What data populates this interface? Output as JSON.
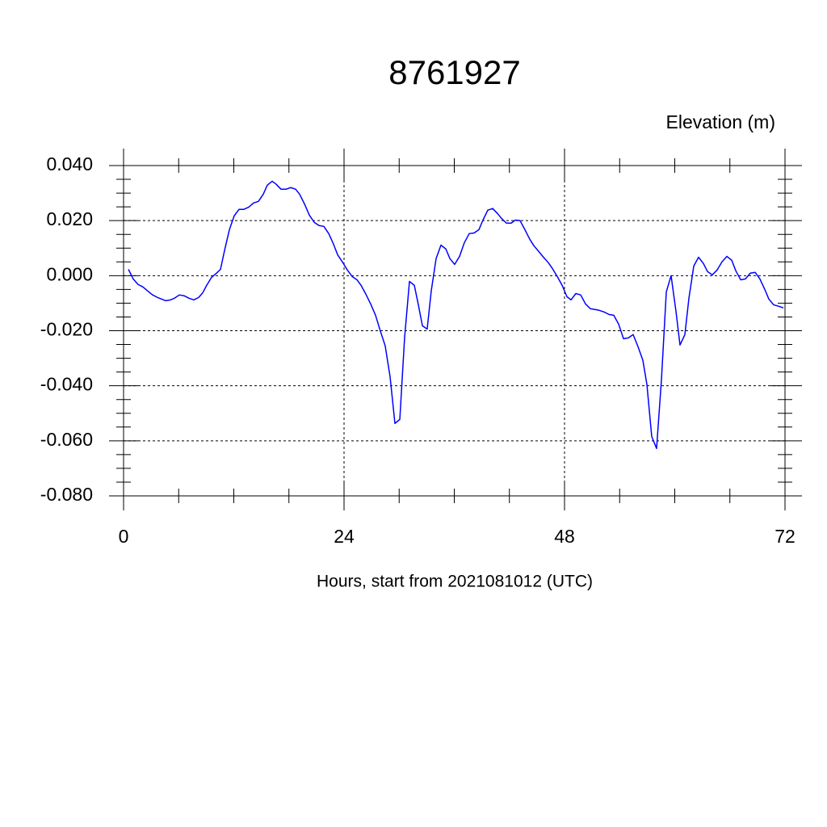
{
  "chart_data": {
    "type": "line",
    "title": "8761927",
    "ylabel": "Elevation (m)",
    "xlabel": "Hours, start from 2021081012 (UTC)",
    "x": [
      0.53,
      1.05,
      1.58,
      2.11,
      2.64,
      3.16,
      3.69,
      4.13,
      4.57,
      5.1,
      5.54,
      6.07,
      6.59,
      7.12,
      7.65,
      8.18,
      8.62,
      9.05,
      9.58,
      10.11,
      10.55,
      10.99,
      11.52,
      12.04,
      12.57,
      13.1,
      13.63,
      14.15,
      14.68,
      15.21,
      15.65,
      16.18,
      16.62,
      17.14,
      17.67,
      18.2,
      18.73,
      19.16,
      19.69,
      20.22,
      20.75,
      21.27,
      21.8,
      22.33,
      22.86,
      23.3,
      23.82,
      24.35,
      24.88,
      25.41,
      25.85,
      26.37,
      26.9,
      27.43,
      27.96,
      28.48,
      29.01,
      29.54,
      30.07,
      30.59,
      31.12,
      31.65,
      32.09,
      32.53,
      33.05,
      33.49,
      34.02,
      34.55,
      35.08,
      35.52,
      36.04,
      36.57,
      37.1,
      37.63,
      38.15,
      38.68,
      39.12,
      39.65,
      40.18,
      40.7,
      41.14,
      41.67,
      42.2,
      42.64,
      43.16,
      43.69,
      44.22,
      44.66,
      45.19,
      45.71,
      46.24,
      46.68,
      47.21,
      47.74,
      48.26,
      48.7,
      49.23,
      49.76,
      50.29,
      50.81,
      51.34,
      51.78,
      52.31,
      52.84,
      53.36,
      53.89,
      54.42,
      54.95,
      55.47,
      56.0,
      56.53,
      56.97,
      57.49,
      58.02,
      58.55,
      59.08,
      59.6,
      60.13,
      60.57,
      61.1,
      61.54,
      62.07,
      62.59,
      63.12,
      63.56,
      64.09,
      64.62,
      65.14,
      65.67,
      66.2,
      66.64,
      67.17,
      67.69,
      68.22,
      68.75,
      69.27,
      69.8,
      70.24,
      70.77,
      71.3,
      71.82
    ],
    "series": [
      {
        "name": "Elevation",
        "color": "#0000ff",
        "values": [
          0.0023,
          -0.0012,
          -0.0032,
          -0.0041,
          -0.0056,
          -0.007,
          -0.0079,
          -0.0085,
          -0.0091,
          -0.0088,
          -0.0082,
          -0.007,
          -0.0073,
          -0.0082,
          -0.0088,
          -0.0079,
          -0.0062,
          -0.0035,
          -0.0006,
          0.0009,
          0.0023,
          0.0091,
          0.0167,
          0.0217,
          0.0241,
          0.0241,
          0.0249,
          0.0264,
          0.027,
          0.0296,
          0.0329,
          0.0343,
          0.0332,
          0.0314,
          0.0314,
          0.032,
          0.0314,
          0.0296,
          0.0261,
          0.022,
          0.0194,
          0.0182,
          0.0179,
          0.0153,
          0.0114,
          0.0076,
          0.005,
          0.0021,
          -0.0003,
          -0.0015,
          -0.0035,
          -0.0067,
          -0.0103,
          -0.0144,
          -0.0202,
          -0.0255,
          -0.0367,
          -0.0537,
          -0.0522,
          -0.0226,
          -0.0021,
          -0.0035,
          -0.0106,
          -0.0182,
          -0.0194,
          -0.0056,
          0.0062,
          0.0111,
          0.0097,
          0.0062,
          0.0041,
          0.007,
          0.012,
          0.0153,
          0.0155,
          0.0167,
          0.0202,
          0.0238,
          0.0244,
          0.0226,
          0.0208,
          0.0191,
          0.0191,
          0.0202,
          0.02,
          0.0167,
          0.0132,
          0.0109,
          0.0088,
          0.0067,
          0.0047,
          0.0026,
          -0.0003,
          -0.0035,
          -0.0076,
          -0.0088,
          -0.0065,
          -0.007,
          -0.0103,
          -0.012,
          -0.0123,
          -0.0126,
          -0.0132,
          -0.0141,
          -0.0144,
          -0.0176,
          -0.0229,
          -0.0226,
          -0.0214,
          -0.0258,
          -0.0308,
          -0.0396,
          -0.0584,
          -0.0628,
          -0.0378,
          -0.0059,
          0.0,
          -0.0129,
          -0.0252,
          -0.0214,
          -0.0082,
          0.0035,
          0.0067,
          0.0044,
          0.0015,
          0.0003,
          0.0021,
          0.005,
          0.007,
          0.0056,
          0.0018,
          -0.0015,
          -0.0012,
          0.0009,
          0.0012,
          -0.0012,
          -0.005,
          -0.0085,
          -0.0106,
          -0.0111,
          -0.0117
        ]
      }
    ],
    "xlim": [
      0,
      72
    ],
    "xticks": [
      0,
      24,
      48,
      72
    ],
    "ylim": [
      -0.08,
      0.04
    ],
    "yticks": [
      {
        "value": -0.08,
        "label": "-0.080"
      },
      {
        "value": -0.06,
        "label": "-0.060"
      },
      {
        "value": -0.04,
        "label": "-0.040"
      },
      {
        "value": -0.02,
        "label": "-0.020"
      },
      {
        "value": 0,
        "label": "0.000"
      },
      {
        "value": 0.02,
        "label": "0.020"
      },
      {
        "value": 0.04,
        "label": "0.040"
      }
    ],
    "grid": true
  }
}
